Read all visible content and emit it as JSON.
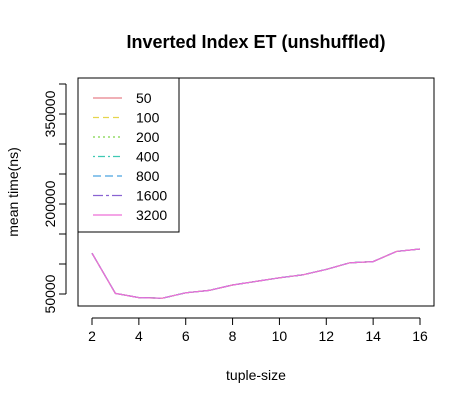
{
  "chart_data": {
    "type": "line",
    "title": "Inverted Index ET (unshuffled)",
    "xlabel": "tuple-size",
    "ylabel": "mean time(ns)",
    "x": [
      2,
      3,
      4,
      5,
      6,
      7,
      8,
      9,
      10,
      11,
      12,
      13,
      14,
      15,
      16
    ],
    "x_ticks": [
      2,
      4,
      6,
      8,
      10,
      12,
      14,
      16
    ],
    "x_tick_labels": [
      "2",
      "4",
      "6",
      "8",
      "10",
      "12",
      "14",
      "16"
    ],
    "y_ticks": [
      50000,
      100000,
      150000,
      200000,
      250000,
      300000,
      350000,
      400000
    ],
    "y_tick_labels": [
      "50000",
      "",
      "",
      "200000",
      "",
      "",
      "350000",
      ""
    ],
    "xlim": [
      2,
      16
    ],
    "ylim": [
      30000,
      410000
    ],
    "grid": false,
    "legend_position": "top-left",
    "series": [
      {
        "name": "50",
        "color": "#e8808a",
        "dash": "",
        "values": [
          118000,
          51000,
          44000,
          43000,
          52000,
          56000,
          65000,
          71000,
          77000,
          82000,
          91000,
          102000,
          104000,
          121000,
          125000
        ]
      },
      {
        "name": "100",
        "color": "#e6d54c",
        "dash": "6,4",
        "values": [
          118000,
          51000,
          44000,
          43000,
          52000,
          56000,
          65000,
          71000,
          77000,
          82000,
          91000,
          102000,
          104000,
          121000,
          125000
        ]
      },
      {
        "name": "200",
        "color": "#7fd44b",
        "dash": "2,3",
        "values": [
          118000,
          51000,
          44000,
          43000,
          52000,
          56000,
          65000,
          71000,
          77000,
          82000,
          91000,
          102000,
          104000,
          121000,
          125000
        ]
      },
      {
        "name": "400",
        "color": "#3fc9b3",
        "dash": "2,3,7,3",
        "values": [
          118000,
          51000,
          44000,
          43000,
          52000,
          56000,
          65000,
          71000,
          77000,
          82000,
          91000,
          102000,
          104000,
          121000,
          125000
        ]
      },
      {
        "name": "800",
        "color": "#4aa3e0",
        "dash": "8,4",
        "values": [
          118000,
          51000,
          44000,
          43000,
          52000,
          56000,
          65000,
          71000,
          77000,
          82000,
          91000,
          102000,
          104000,
          121000,
          125000
        ]
      },
      {
        "name": "1600",
        "color": "#8a63d2",
        "dash": "10,3,3,3",
        "values": [
          118000,
          51000,
          44000,
          43000,
          52000,
          56000,
          65000,
          71000,
          77000,
          82000,
          91000,
          102000,
          104000,
          121000,
          125000
        ]
      },
      {
        "name": "3200",
        "color": "#ee6fd8",
        "dash": "",
        "values": [
          118000,
          51000,
          44000,
          43000,
          52000,
          56000,
          65000,
          71000,
          77000,
          82000,
          91000,
          102000,
          104000,
          121000,
          125000
        ]
      }
    ]
  }
}
